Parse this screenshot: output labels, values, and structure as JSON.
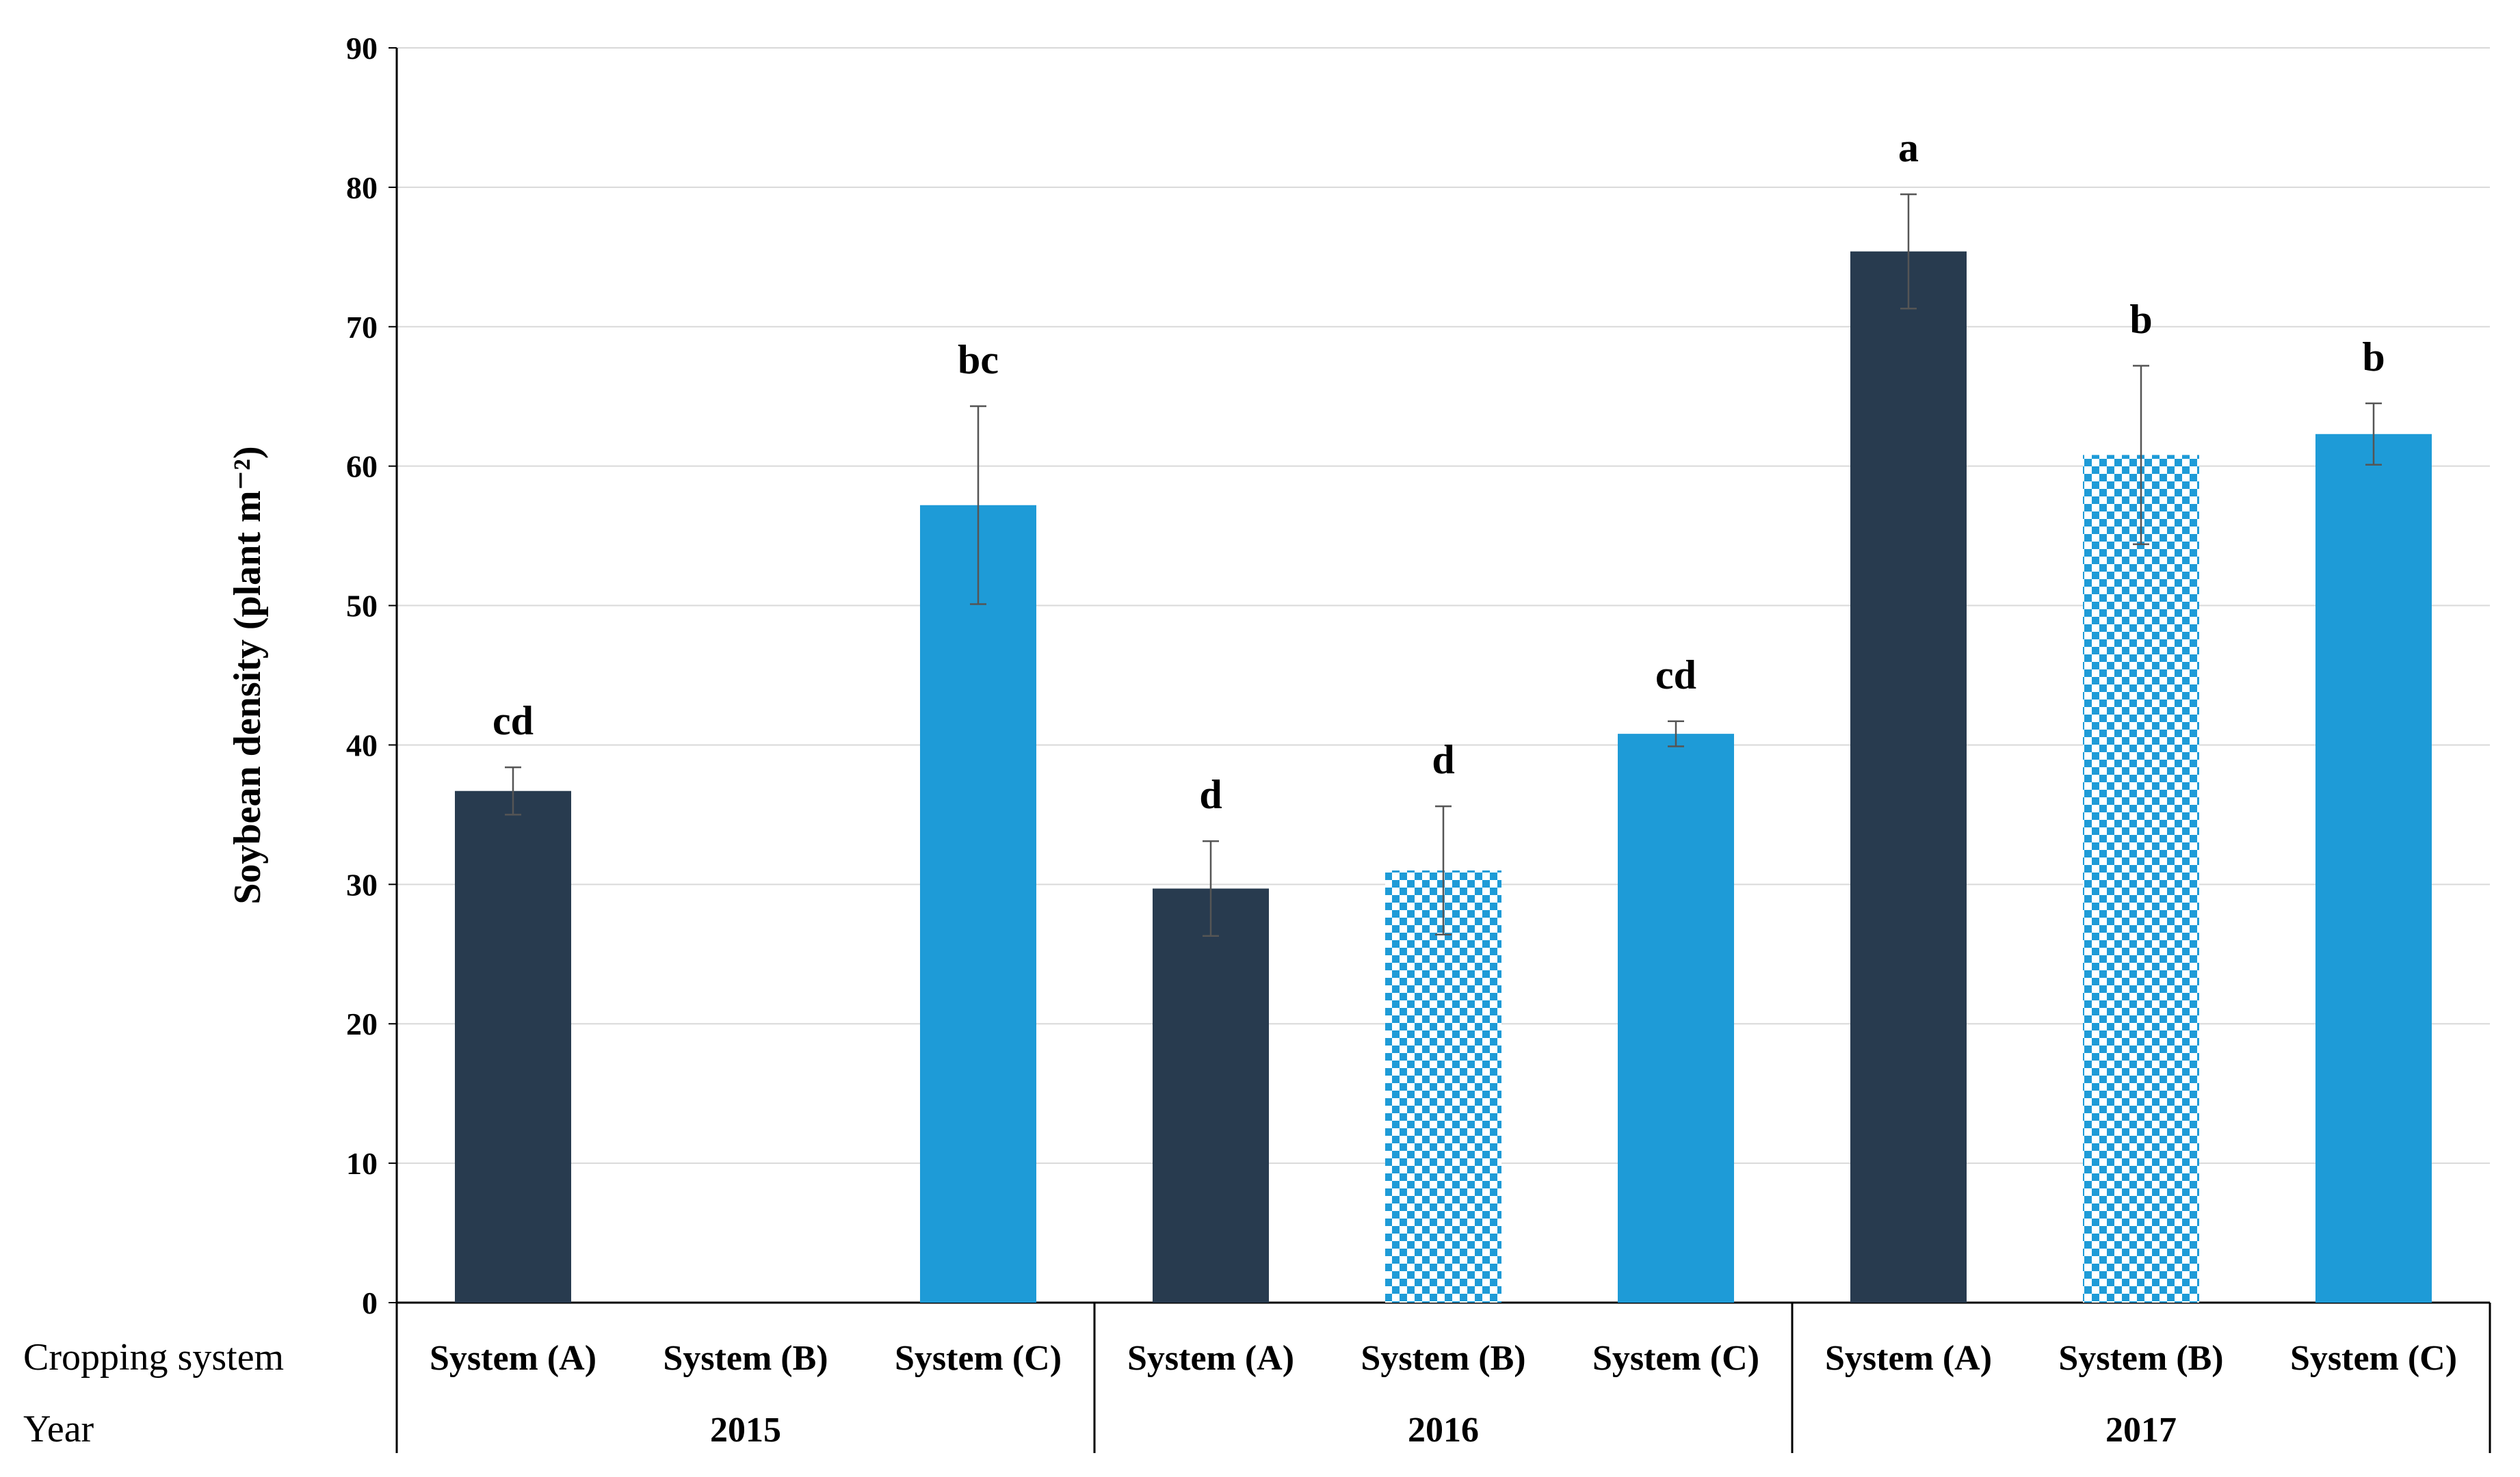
{
  "chart_data": {
    "type": "bar",
    "ylabel": "Soybean density (plant m⁻²)",
    "ylim": [
      0,
      90
    ],
    "yticks": [
      0,
      10,
      20,
      30,
      40,
      50,
      60,
      70,
      80,
      90
    ],
    "grid": true,
    "row_labels": {
      "cropping_system": "Cropping system",
      "year": "Year"
    },
    "colors": {
      "system_a": "#283b4f",
      "system_b": "#1e9bd7",
      "system_c": "#1e9bd7",
      "error_bar": "#555555",
      "grid": "#d9d9d9"
    },
    "groups": [
      {
        "year": "2015",
        "bars": [
          {
            "system": "System (A)",
            "value": 36.7,
            "error": 1.7,
            "letter": "cd",
            "pattern": "solid-dark"
          },
          {
            "system": "System (B)",
            "value": null,
            "error": null,
            "letter": "",
            "pattern": "checker"
          },
          {
            "system": "System (C)",
            "value": 57.2,
            "error": 7.1,
            "letter": "bc",
            "pattern": "solid-blue"
          }
        ]
      },
      {
        "year": "2016",
        "bars": [
          {
            "system": "System (A)",
            "value": 29.7,
            "error": 3.4,
            "letter": "d",
            "pattern": "solid-dark"
          },
          {
            "system": "System (B)",
            "value": 31.0,
            "error": 4.6,
            "letter": "d",
            "pattern": "checker"
          },
          {
            "system": "System (C)",
            "value": 40.8,
            "error": 0.9,
            "letter": "cd",
            "pattern": "solid-blue"
          }
        ]
      },
      {
        "year": "2017",
        "bars": [
          {
            "system": "System (A)",
            "value": 75.4,
            "error": 4.1,
            "letter": "a",
            "pattern": "solid-dark"
          },
          {
            "system": "System (B)",
            "value": 60.8,
            "error": 6.4,
            "letter": "b",
            "pattern": "checker"
          },
          {
            "system": "System (C)",
            "value": 62.3,
            "error": 2.2,
            "letter": "b",
            "pattern": "solid-blue"
          }
        ]
      }
    ]
  }
}
